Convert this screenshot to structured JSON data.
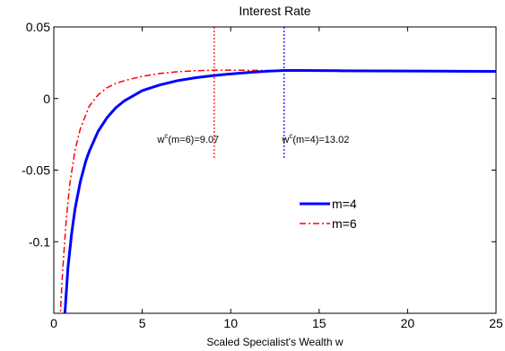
{
  "chart_data": {
    "type": "line",
    "title": "Interest Rate",
    "xlabel": "Scaled Specialist's Wealth w",
    "ylabel": "",
    "xlim": [
      0,
      25
    ],
    "ylim": [
      -0.15,
      0.05
    ],
    "xticks": [
      0,
      5,
      10,
      15,
      20,
      25
    ],
    "xtick_labels": [
      "0",
      "5",
      "10",
      "15",
      "20",
      "25"
    ],
    "yticks": [
      0.05,
      0,
      -0.05,
      -0.1
    ],
    "ytick_labels": [
      "0.05",
      "0",
      "-0.05",
      "-0.1"
    ],
    "grid": false,
    "legend_position": "center-right",
    "series": [
      {
        "name": "m=4",
        "color": "#0000ff",
        "style": "solid",
        "x": [
          0.6,
          0.8,
          1.0,
          1.2,
          1.5,
          1.8,
          2.0,
          2.5,
          3.0,
          3.5,
          4.0,
          5.0,
          6.0,
          7.0,
          8.0,
          9.0,
          10.0,
          11.0,
          12.0,
          13.02,
          14.0,
          15.0,
          16.0,
          18.0,
          20.0,
          22.0,
          25.0
        ],
        "y": [
          -0.155,
          -0.118,
          -0.095,
          -0.077,
          -0.058,
          -0.044,
          -0.037,
          -0.023,
          -0.0135,
          -0.0065,
          -0.0015,
          0.0055,
          0.0095,
          0.0125,
          0.0145,
          0.016,
          0.0172,
          0.0182,
          0.019,
          0.0196,
          0.0196,
          0.0195,
          0.0194,
          0.0193,
          0.0192,
          0.0191,
          0.019
        ]
      },
      {
        "name": "m=6",
        "color": "#ff0000",
        "style": "dashdot",
        "x": [
          0.35,
          0.5,
          0.7,
          0.9,
          1.2,
          1.5,
          2.0,
          2.5,
          3.0,
          3.5,
          4.0,
          5.0,
          6.0,
          7.0,
          8.0,
          9.07,
          10.0,
          11.0,
          12.0,
          13.0,
          14.0,
          16.0,
          18.0,
          20.0,
          22.0,
          25.0
        ],
        "y": [
          -0.155,
          -0.12,
          -0.085,
          -0.06,
          -0.036,
          -0.021,
          -0.0055,
          0.0025,
          0.0075,
          0.0105,
          0.0125,
          0.0155,
          0.0175,
          0.0187,
          0.0194,
          0.0198,
          0.0198,
          0.0197,
          0.0196,
          0.0195,
          0.0194,
          0.0193,
          0.0192,
          0.0191,
          0.019,
          0.0189
        ]
      }
    ],
    "vlines": [
      {
        "x": 9.07,
        "color": "#ff0000",
        "style": "dotted",
        "y_from": -0.0415,
        "y_to": 0.05
      },
      {
        "x": 13.02,
        "color": "#0000ff",
        "style": "dotted",
        "y_from": -0.0415,
        "y_to": 0.05
      }
    ],
    "annotations": [
      {
        "base": "w",
        "sup": "c",
        "rest": "(m=6)=9.07",
        "x": 5.85,
        "y": -0.031
      },
      {
        "base": "w",
        "sup": "c",
        "rest": "(m=4)=13.02",
        "x": 12.9,
        "y": -0.031
      }
    ]
  }
}
